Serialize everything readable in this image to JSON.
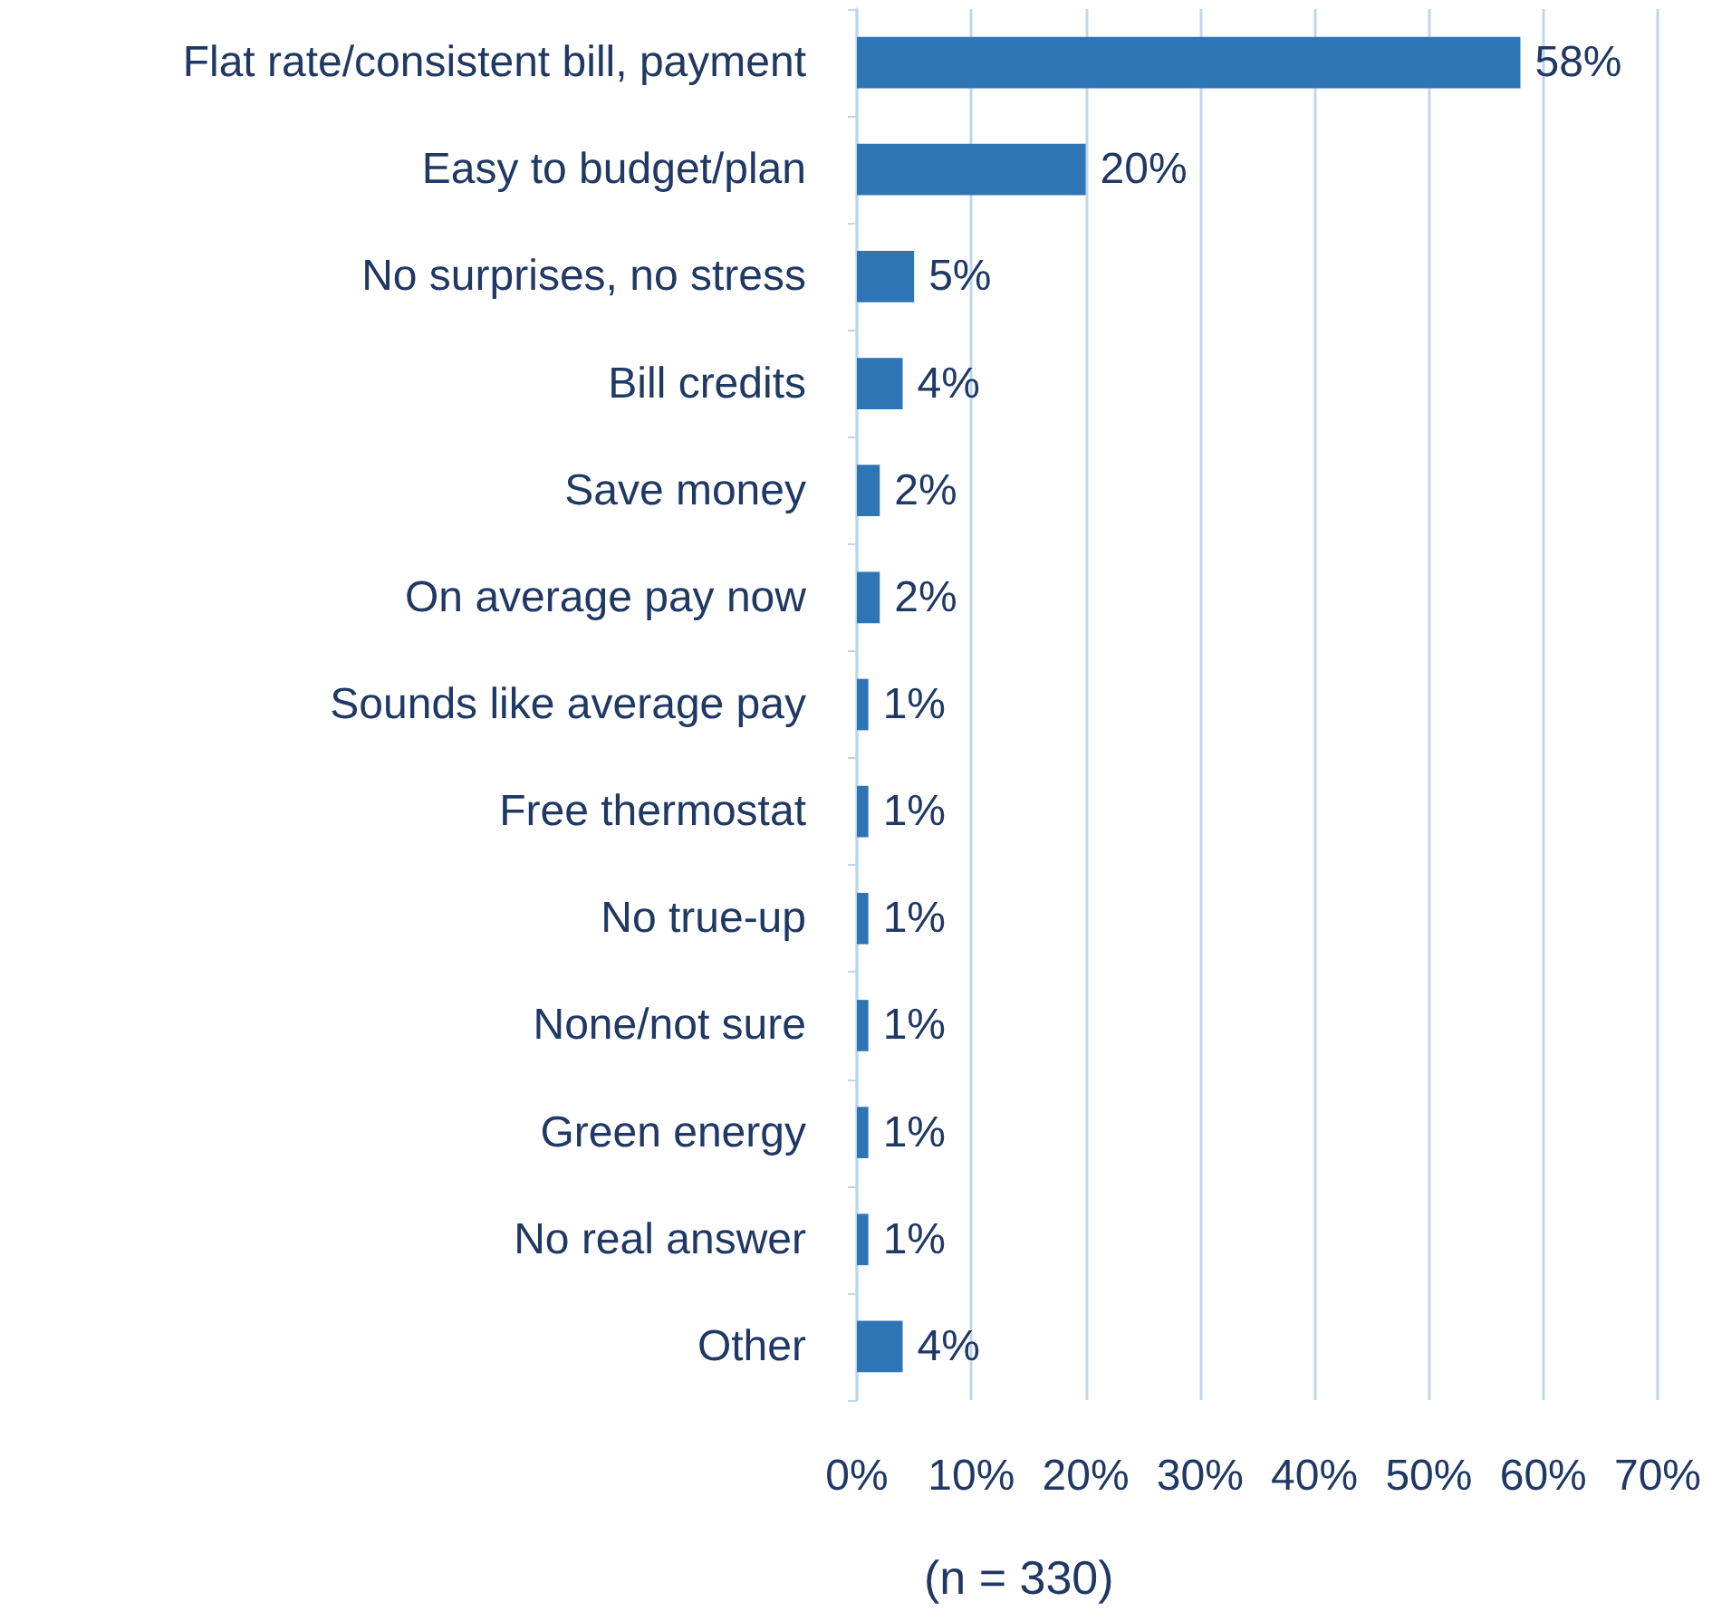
{
  "chart_data": {
    "type": "bar",
    "orientation": "horizontal",
    "categories": [
      "Flat rate/consistent bill, payment",
      "Easy to budget/plan",
      "No surprises, no stress",
      "Bill credits",
      "Save money",
      "On average pay now",
      "Sounds like average pay",
      "Free thermostat",
      "No true-up",
      "None/not sure",
      "Green energy",
      "No real answer",
      "Other"
    ],
    "values": [
      58,
      20,
      5,
      4,
      2,
      2,
      1,
      1,
      1,
      1,
      1,
      1,
      4
    ],
    "value_labels": [
      "58%",
      "20%",
      "5%",
      "4%",
      "2%",
      "2%",
      "1%",
      "1%",
      "1%",
      "1%",
      "1%",
      "1%",
      "4%"
    ],
    "color": "#2e75b6",
    "xlim": [
      0,
      70
    ],
    "xticks": [
      {
        "value": 0,
        "label": "0%"
      },
      {
        "value": 10,
        "label": "10%"
      },
      {
        "value": 20,
        "label": "20%"
      },
      {
        "value": 30,
        "label": "30%"
      },
      {
        "value": 40,
        "label": "40%"
      },
      {
        "value": 50,
        "label": "50%"
      },
      {
        "value": 60,
        "label": "60%"
      },
      {
        "value": 70,
        "label": "70%"
      }
    ],
    "grid": "x",
    "annotations": [
      "(n = 330)"
    ]
  }
}
